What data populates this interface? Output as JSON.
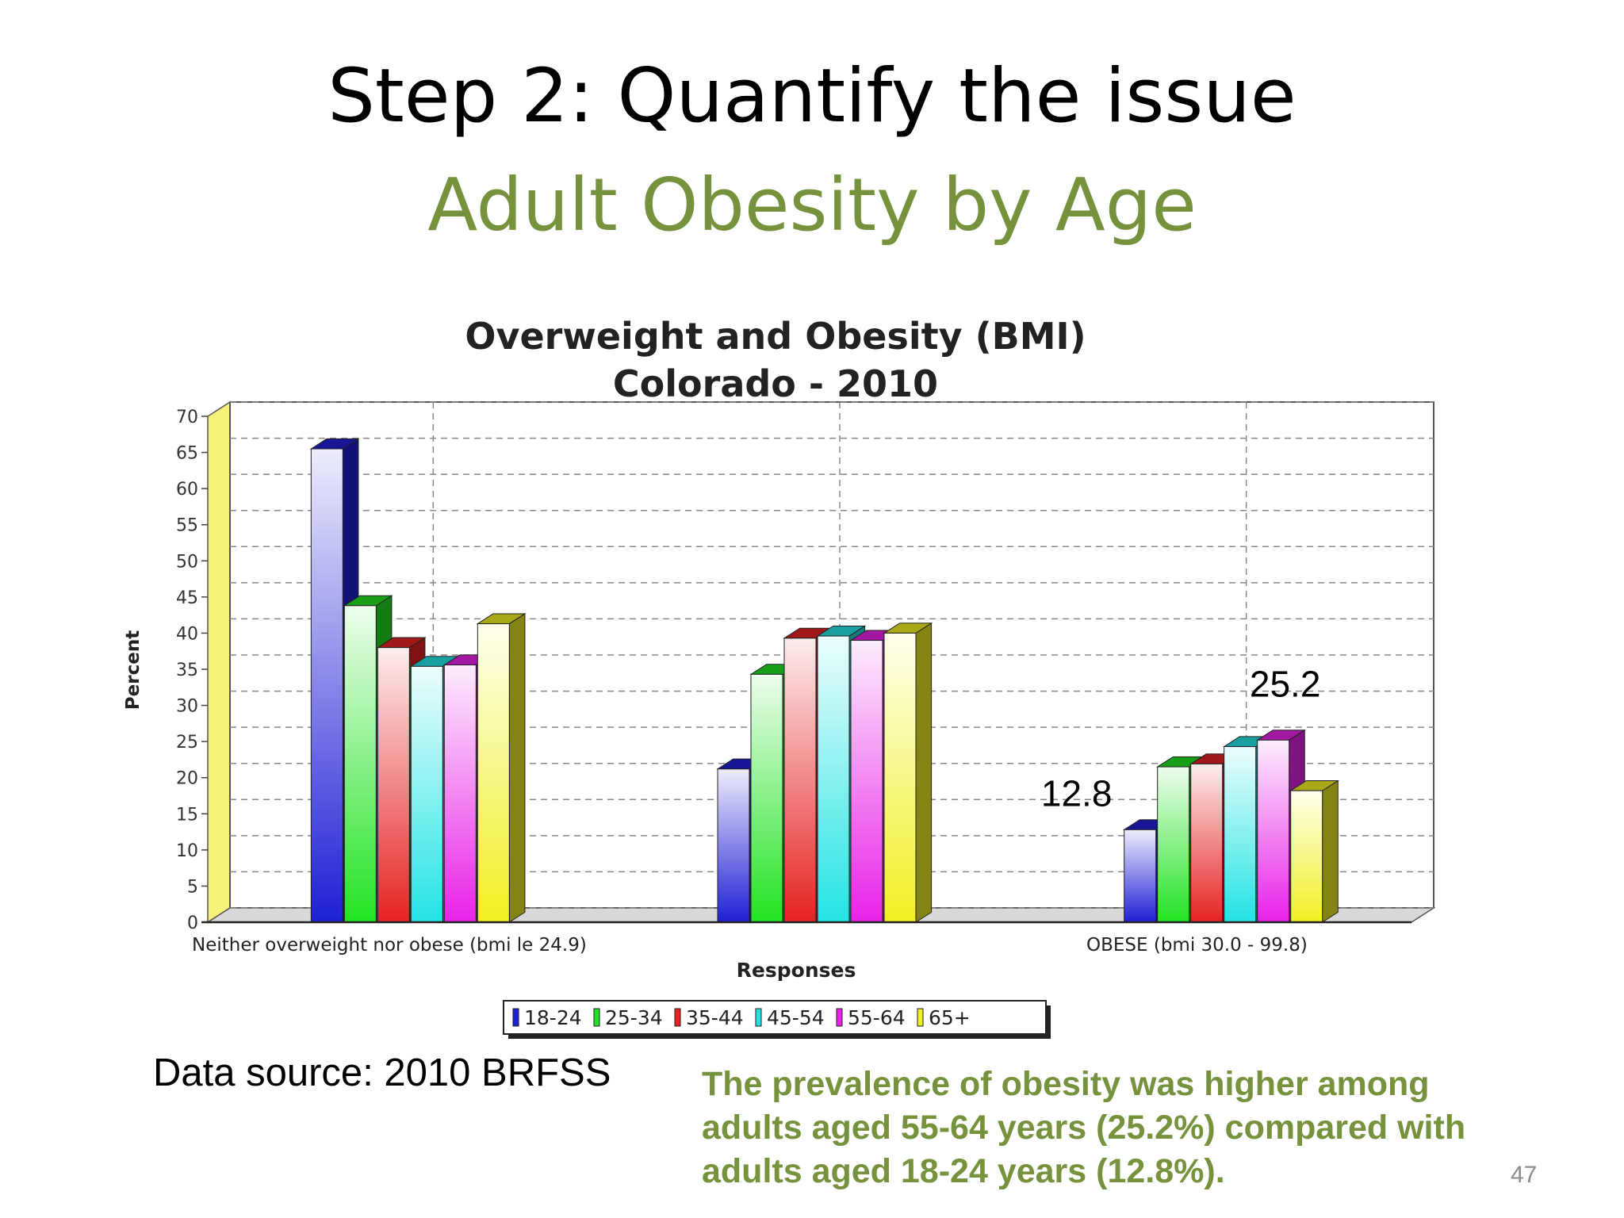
{
  "slide": {
    "title": "Step 2: Quantify the issue",
    "subtitle": "Adult Obesity by Age",
    "source": "Data source: 2010 BRFSS",
    "caption_lines": [
      "The prevalence of obesity was higher among",
      "adults aged 55-64 years (25.2%) compared with",
      "adults aged 18-24 years (12.8%)."
    ],
    "page_number": "47"
  },
  "chart_data": {
    "type": "bar",
    "title_lines": [
      "Overweight and Obesity (BMI)",
      "Colorado - 2010"
    ],
    "xlabel": "Responses",
    "ylabel": "Percent",
    "ylim": [
      0,
      70
    ],
    "yticks": [
      0,
      5,
      10,
      15,
      20,
      25,
      30,
      35,
      40,
      45,
      50,
      55,
      60,
      65,
      70
    ],
    "grid": true,
    "legend_position": "bottom",
    "categories": [
      "Neither overweight nor obese (bmi le 24.9)",
      "",
      "OBESE (bmi 30.0 - 99.8)"
    ],
    "series": [
      {
        "name": "18-24",
        "values": [
          65.5,
          21.2,
          12.8
        ],
        "color": "#1f1fd6"
      },
      {
        "name": "25-34",
        "values": [
          43.8,
          34.3,
          21.5
        ],
        "color": "#22e322"
      },
      {
        "name": "35-44",
        "values": [
          38.0,
          39.3,
          21.9
        ],
        "color": "#e62222"
      },
      {
        "name": "45-54",
        "values": [
          35.4,
          39.6,
          24.3
        ],
        "color": "#22e3e3"
      },
      {
        "name": "55-64",
        "values": [
          35.6,
          39.0,
          25.2
        ],
        "color": "#e822e8"
      },
      {
        "name": "65+",
        "values": [
          41.3,
          40.0,
          18.2
        ],
        "color": "#f0f022"
      }
    ],
    "annotations": [
      {
        "text": "12.8",
        "category": 2,
        "series": 0
      },
      {
        "text": "25.2",
        "category": 2,
        "series": 4
      }
    ]
  }
}
